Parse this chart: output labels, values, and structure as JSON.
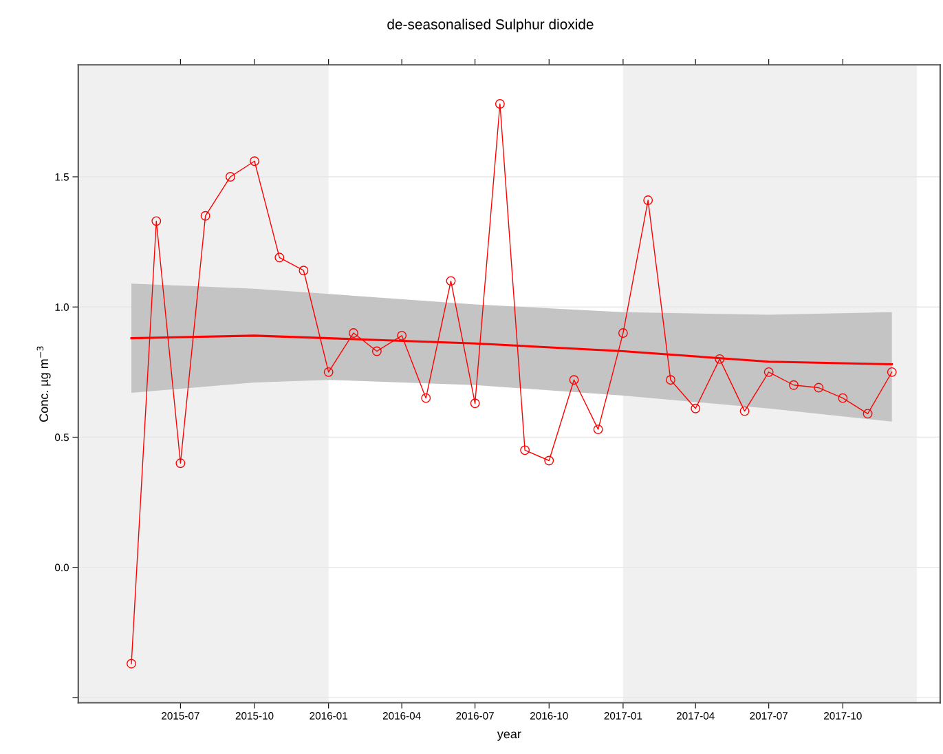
{
  "chart_data": {
    "type": "line",
    "title": "de-seasonalised Sulphur dioxide",
    "xlabel": "year",
    "ylabel": "Conc. µg m$^{−3}$",
    "x": [
      "2015-05",
      "2015-06",
      "2015-07",
      "2015-08",
      "2015-09",
      "2015-10",
      "2015-11",
      "2015-12",
      "2016-01",
      "2016-02",
      "2016-03",
      "2016-04",
      "2016-05",
      "2016-06",
      "2016-07",
      "2016-08",
      "2016-09",
      "2016-10",
      "2016-11",
      "2016-12",
      "2017-01",
      "2017-02",
      "2017-03",
      "2017-04",
      "2017-05",
      "2017-06",
      "2017-07",
      "2017-08",
      "2017-09",
      "2017-10",
      "2017-11",
      "2017-12"
    ],
    "series": [
      {
        "color": "#ff0000",
        "marker": "circle",
        "values": [
          -0.37,
          1.33,
          0.4,
          1.35,
          1.5,
          1.56,
          1.19,
          1.14,
          0.75,
          0.9,
          0.83,
          0.89,
          0.65,
          1.1,
          0.63,
          1.78,
          0.45,
          0.41,
          0.72,
          0.53,
          0.9,
          1.41,
          0.72,
          0.61,
          0.8,
          0.6,
          0.75,
          0.7,
          0.69,
          0.65,
          0.59,
          0.75
        ]
      },
      {
        "color": "#ff0000",
        "marker": "none",
        "x": [
          "2015-05",
          "2015-10",
          "2016-01",
          "2016-07",
          "2017-01",
          "2017-07",
          "2017-12"
        ],
        "values": [
          0.88,
          0.89,
          0.88,
          0.86,
          0.83,
          0.79,
          0.78
        ],
        "lower": [
          0.67,
          0.71,
          0.72,
          0.7,
          0.66,
          0.61,
          0.56
        ],
        "upper": [
          1.09,
          1.07,
          1.05,
          1.01,
          0.98,
          0.97,
          0.98
        ]
      }
    ],
    "bands": [
      {
        "axis": "x",
        "from": "2015-02-24",
        "to": "2016-01-01",
        "color": "#f0f0f0"
      },
      {
        "axis": "x",
        "from": "2017-01-01",
        "to": "2018-01-01",
        "color": "#f0f0f0"
      }
    ],
    "xlim": [
      "2015-02-24",
      "2018-01-30"
    ],
    "xticks": [
      {
        "value": "2015-07",
        "label": "2015-07"
      },
      {
        "value": "2015-10",
        "label": "2015-10"
      },
      {
        "value": "2016-01",
        "label": "2016-01"
      },
      {
        "value": "2016-04",
        "label": "2016-04"
      },
      {
        "value": "2016-07",
        "label": "2016-07"
      },
      {
        "value": "2016-10",
        "label": "2016-10"
      },
      {
        "value": "2017-01",
        "label": "2017-01"
      },
      {
        "value": "2017-04",
        "label": "2017-04"
      },
      {
        "value": "2017-07",
        "label": "2017-07"
      },
      {
        "value": "2017-10",
        "label": "2017-10"
      }
    ],
    "ylim": [
      -0.52,
      1.93
    ],
    "yticks": [
      {
        "value": -0.5,
        "label": null
      },
      {
        "value": 0.0,
        "label": "0.0"
      },
      {
        "value": 0.5,
        "label": "0.5"
      },
      {
        "value": 1.0,
        "label": "1.0"
      },
      {
        "value": 1.5,
        "label": "1.5"
      }
    ],
    "grid": "y",
    "legend": false,
    "line_style": "solid"
  }
}
